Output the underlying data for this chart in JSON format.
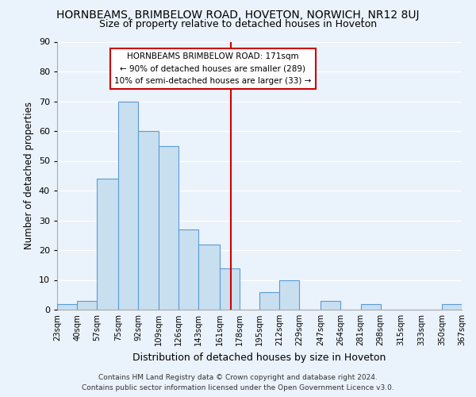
{
  "title": "HORNBEAMS, BRIMBELOW ROAD, HOVETON, NORWICH, NR12 8UJ",
  "subtitle": "Size of property relative to detached houses in Hoveton",
  "xlabel": "Distribution of detached houses by size in Hoveton",
  "ylabel": "Number of detached properties",
  "bin_edges": [
    23,
    40,
    57,
    75,
    92,
    109,
    126,
    143,
    161,
    178,
    195,
    212,
    229,
    247,
    264,
    281,
    298,
    315,
    333,
    350,
    367
  ],
  "bin_labels": [
    "23sqm",
    "40sqm",
    "57sqm",
    "75sqm",
    "92sqm",
    "109sqm",
    "126sqm",
    "143sqm",
    "161sqm",
    "178sqm",
    "195sqm",
    "212sqm",
    "229sqm",
    "247sqm",
    "264sqm",
    "281sqm",
    "298sqm",
    "315sqm",
    "333sqm",
    "350sqm",
    "367sqm"
  ],
  "bar_heights": [
    2,
    3,
    44,
    70,
    60,
    55,
    27,
    22,
    14,
    0,
    6,
    10,
    0,
    3,
    0,
    2,
    0,
    0,
    0,
    2
  ],
  "bar_color": "#c8dff0",
  "bar_edge_color": "#5b9bd5",
  "vline_x": 171,
  "vline_color": "#cc0000",
  "annotation_title": "HORNBEAMS BRIMBELOW ROAD: 171sqm",
  "annotation_line1": "← 90% of detached houses are smaller (289)",
  "annotation_line2": "10% of semi-detached houses are larger (33) →",
  "annotation_box_edge": "#cc0000",
  "ylim": [
    0,
    90
  ],
  "yticks": [
    0,
    10,
    20,
    30,
    40,
    50,
    60,
    70,
    80,
    90
  ],
  "footer1": "Contains HM Land Registry data © Crown copyright and database right 2024.",
  "footer2": "Contains public sector information licensed under the Open Government Licence v3.0.",
  "bg_color": "#eaf2fb"
}
